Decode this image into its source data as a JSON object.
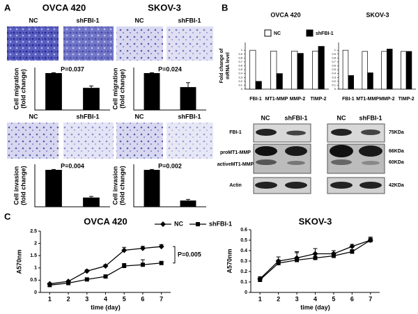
{
  "panel_a": {
    "label": "A",
    "titles": [
      "OVCA 420",
      "SKOV-3"
    ],
    "image_labels": [
      [
        "NC",
        "shFBI-1"
      ],
      [
        "NC",
        "shFBI-1"
      ],
      [
        "NC",
        "shFBI-1"
      ],
      [
        "NC",
        "shFBI-1"
      ]
    ]
  },
  "panel_b": {
    "label": "B",
    "titles": [
      "OVCA 420",
      "SKOV-3"
    ],
    "western": {
      "lanes": [
        [
          "NC",
          "shFBI-1"
        ],
        [
          "NC",
          "shFBI-1"
        ]
      ],
      "rows": [
        "FBI-1",
        "proMT1-MMP",
        "activeMT1-MMP",
        "Actin"
      ],
      "sizes": [
        "75KDa",
        "66KDa",
        "60KDa",
        "42KDa"
      ]
    }
  },
  "panel_c": {
    "label": "C"
  },
  "chart_data": [
    {
      "type": "bar",
      "annotation": "P=0.037",
      "ylabel": [
        "Cell migration",
        "(fold change)"
      ],
      "categories": [
        null,
        null
      ],
      "values": [
        1,
        0.6
      ],
      "errors": [
        0.01,
        0.05
      ],
      "color": "#000000",
      "ylim": [
        0,
        1.15
      ]
    },
    {
      "type": "bar",
      "annotation": "P=0.024",
      "ylabel": [
        "Cell migration",
        "(fold change)"
      ],
      "categories": [
        null,
        null
      ],
      "values": [
        1,
        0.62
      ],
      "errors": [
        0.01,
        0.12
      ],
      "color": "#000000",
      "ylim": [
        0,
        1.15
      ]
    },
    {
      "type": "bar",
      "annotation": "P=0.004",
      "ylabel": [
        "Cell invasion",
        "(fold change)"
      ],
      "categories": [
        null,
        null
      ],
      "values": [
        1,
        0.25
      ],
      "errors": [
        0.01,
        0.03
      ],
      "color": "#000000",
      "ylim": [
        0,
        1.15
      ]
    },
    {
      "type": "bar",
      "annotation": "P=0.002",
      "ylabel": [
        "Cell invasion",
        "(fold change)"
      ],
      "categories": [
        null,
        null
      ],
      "values": [
        1,
        0.17
      ],
      "errors": [
        0.01,
        0.03
      ],
      "color": "#000000",
      "ylim": [
        0,
        1.15
      ]
    },
    {
      "type": "grouped_bar",
      "legend": true,
      "ylabel": [
        "Fold change of",
        "mRNA level"
      ],
      "categories": [
        "FBI-1",
        "MT1-MMP",
        "MMP-2",
        "TIMP-2"
      ],
      "series": [
        {
          "name": "NC",
          "color": "#ffffff",
          "values": [
            1,
            0.98,
            0.98,
            0.98
          ]
        },
        {
          "name": "shFBI-1",
          "color": "#000000",
          "values": [
            0.2,
            0.4,
            0.92,
            1.1
          ]
        }
      ],
      "ylim": [
        0,
        1.2
      ],
      "yticks": [
        0,
        0.1,
        0.2,
        0.3,
        0.4,
        0.5,
        0.6,
        0.7,
        0.8,
        0.9,
        1
      ]
    },
    {
      "type": "grouped_bar",
      "legend": false,
      "categories": [
        "FBI-1",
        "MT1-MMP",
        "MMP-2",
        "TIMP-2"
      ],
      "series": [
        {
          "color": "#ffffff",
          "values": [
            1,
            0.97,
            0.97,
            0.97
          ]
        },
        {
          "color": "#000000",
          "values": [
            0.35,
            0.42,
            1.03,
            0.97
          ]
        }
      ],
      "ylim": [
        0,
        1.2
      ],
      "yticks": [
        0,
        0.1,
        0.2,
        0.3,
        0.4,
        0.5,
        0.6,
        0.7,
        0.8,
        0.9,
        1
      ]
    },
    {
      "type": "line",
      "title": "OVCA 420",
      "legend": true,
      "annotation": "P=0.005",
      "xlabel": "time (day)",
      "ylabel": "A570nm",
      "x": [
        1,
        2,
        3,
        4,
        5,
        6,
        7
      ],
      "xlim": [
        0.5,
        7.5
      ],
      "xticks": [
        1,
        2,
        3,
        4,
        5,
        6,
        7
      ],
      "ylim": [
        0,
        2.5
      ],
      "yticks": [
        0,
        0.5,
        1,
        1.5,
        2,
        2.5
      ],
      "series": [
        {
          "name": "NC",
          "color": "#000000",
          "marker": "diamond",
          "values": [
            0.35,
            0.45,
            0.87,
            1.08,
            1.72,
            1.8,
            1.87
          ],
          "errors": [
            0.03,
            0.03,
            0.05,
            0.05,
            0.12,
            0.08,
            0.08
          ]
        },
        {
          "name": "shFBI-1",
          "color": "#000000",
          "marker": "square",
          "values": [
            0.3,
            0.38,
            0.53,
            0.65,
            1.08,
            1.13,
            1.2
          ],
          "errors": [
            0.03,
            0.04,
            0.04,
            0.06,
            0.1,
            0.2,
            0.05
          ]
        }
      ]
    },
    {
      "type": "line",
      "title": "SKOV-3",
      "legend": false,
      "xlabel": "time (day)",
      "ylabel": "A570nm",
      "x": [
        1,
        2,
        3,
        4,
        5,
        6,
        7
      ],
      "xlim": [
        0.5,
        7.5
      ],
      "xticks": [
        1,
        2,
        3,
        4,
        5,
        6,
        7
      ],
      "ylim": [
        0,
        0.6
      ],
      "yticks": [
        0,
        0.1,
        0.2,
        0.3,
        0.4,
        0.5,
        0.6
      ],
      "series": [
        {
          "color": "#000000",
          "marker": "diamond",
          "values": [
            0.13,
            0.3,
            0.33,
            0.37,
            0.37,
            0.44,
            0.5
          ],
          "errors": [
            0.02,
            0.04,
            0.05,
            0.05,
            0.03,
            0.02,
            0.02
          ]
        },
        {
          "color": "#000000",
          "marker": "square",
          "values": [
            0.12,
            0.28,
            0.31,
            0.33,
            0.35,
            0.39,
            0.5
          ],
          "errors": [
            0.02,
            0.03,
            0.08,
            0.04,
            0.03,
            0.02,
            0.03
          ]
        }
      ]
    }
  ]
}
